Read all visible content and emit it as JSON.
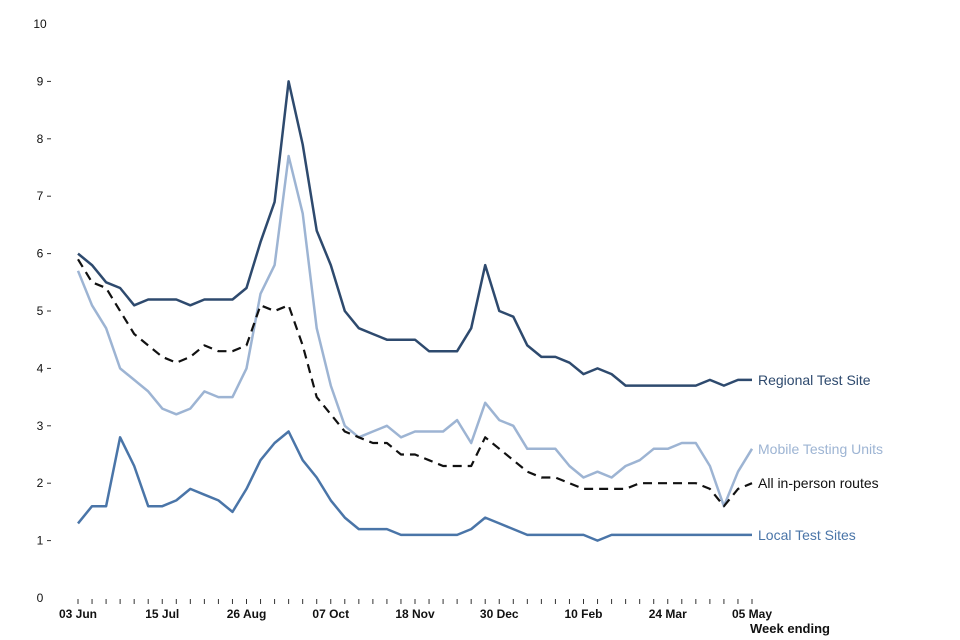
{
  "chart_data": {
    "type": "line",
    "title": "",
    "xlabel": "Week ending",
    "ylabel": "",
    "ylim": [
      0,
      10
    ],
    "yticks": [
      0,
      1,
      2,
      3,
      4,
      5,
      6,
      7,
      8,
      9,
      10
    ],
    "n_points": 49,
    "x_tick_labels": [
      {
        "index": 0,
        "label": "03 Jun"
      },
      {
        "index": 6,
        "label": "15 Jul"
      },
      {
        "index": 12,
        "label": "26 Aug"
      },
      {
        "index": 18,
        "label": "07 Oct"
      },
      {
        "index": 24,
        "label": "18 Nov"
      },
      {
        "index": 30,
        "label": "30 Dec"
      },
      {
        "index": 36,
        "label": "10 Feb"
      },
      {
        "index": 42,
        "label": "24 Mar"
      },
      {
        "index": 48,
        "label": "05 May"
      }
    ],
    "series": [
      {
        "name": "Regional Test Site",
        "color": "#2e4a6e",
        "dash": "solid",
        "values": [
          6.0,
          5.8,
          5.5,
          5.4,
          5.1,
          5.2,
          5.2,
          5.2,
          5.1,
          5.2,
          5.2,
          5.2,
          5.4,
          6.2,
          6.9,
          9.0,
          7.9,
          6.4,
          5.8,
          5.0,
          4.7,
          4.6,
          4.5,
          4.5,
          4.5,
          4.3,
          4.3,
          4.3,
          4.7,
          5.8,
          5.0,
          4.9,
          4.4,
          4.2,
          4.2,
          4.1,
          3.9,
          4.0,
          3.9,
          3.7,
          3.7,
          3.7,
          3.7,
          3.7,
          3.7,
          3.8,
          3.7,
          3.8,
          3.8
        ]
      },
      {
        "name": "Mobile Testing Units",
        "color": "#9db4d3",
        "dash": "solid",
        "values": [
          5.7,
          5.1,
          4.7,
          4.0,
          3.8,
          3.6,
          3.3,
          3.2,
          3.3,
          3.6,
          3.5,
          3.5,
          4.0,
          5.3,
          5.8,
          7.7,
          6.7,
          4.7,
          3.7,
          3.0,
          2.8,
          2.9,
          3.0,
          2.8,
          2.9,
          2.9,
          2.9,
          3.1,
          2.7,
          3.4,
          3.1,
          3.0,
          2.6,
          2.6,
          2.6,
          2.3,
          2.1,
          2.2,
          2.1,
          2.3,
          2.4,
          2.6,
          2.6,
          2.7,
          2.7,
          2.3,
          1.6,
          2.2,
          2.6
        ]
      },
      {
        "name": "All in-person routes",
        "color": "#111111",
        "dash": "dashed",
        "values": [
          5.9,
          5.5,
          5.4,
          5.0,
          4.6,
          4.4,
          4.2,
          4.1,
          4.2,
          4.4,
          4.3,
          4.3,
          4.4,
          5.1,
          5.0,
          5.1,
          4.4,
          3.5,
          3.2,
          2.9,
          2.8,
          2.7,
          2.7,
          2.5,
          2.5,
          2.4,
          2.3,
          2.3,
          2.3,
          2.8,
          2.6,
          2.4,
          2.2,
          2.1,
          2.1,
          2.0,
          1.9,
          1.9,
          1.9,
          1.9,
          2.0,
          2.0,
          2.0,
          2.0,
          2.0,
          1.9,
          1.6,
          1.9,
          2.0
        ]
      },
      {
        "name": "Local Test Sites",
        "color": "#4a75a8",
        "dash": "solid",
        "values": [
          1.3,
          1.6,
          1.6,
          2.8,
          2.3,
          1.6,
          1.6,
          1.7,
          1.9,
          1.8,
          1.7,
          1.5,
          1.9,
          2.4,
          2.7,
          2.9,
          2.4,
          2.1,
          1.7,
          1.4,
          1.2,
          1.2,
          1.2,
          1.1,
          1.1,
          1.1,
          1.1,
          1.1,
          1.2,
          1.4,
          1.3,
          1.2,
          1.1,
          1.1,
          1.1,
          1.1,
          1.1,
          1.0,
          1.1,
          1.1,
          1.1,
          1.1,
          1.1,
          1.1,
          1.1,
          1.1,
          1.1,
          1.1,
          1.1
        ]
      }
    ]
  }
}
